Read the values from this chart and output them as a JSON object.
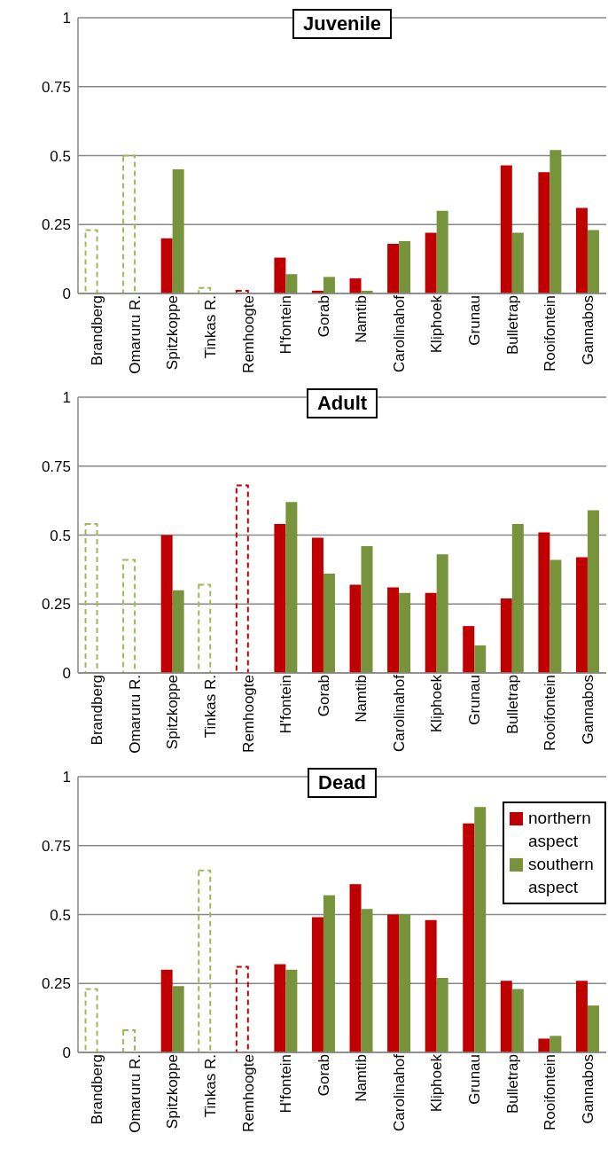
{
  "chart_data": [
    {
      "type": "bar",
      "title": "Juvenile",
      "categories": [
        "Brandberg",
        "Omaruru R.",
        "Spitzkoppe",
        "Tinkas R.",
        "Remhoogte",
        "H'fontein",
        "Gorab",
        "Namtib",
        "Carolinahof",
        "Kliphoek",
        "Grunau",
        "Bulletrap",
        "Rooifontein",
        "Gannabos"
      ],
      "series": [
        {
          "color": "#c00000",
          "values": [
            null,
            null,
            0.2,
            null,
            null,
            0.13,
            0.01,
            0.055,
            0.18,
            0.22,
            null,
            0.465,
            0.44,
            0.31
          ]
        },
        {
          "color": "#77933c",
          "values": [
            null,
            null,
            0.45,
            null,
            null,
            0.07,
            0.06,
            0.01,
            0.19,
            0.3,
            null,
            0.22,
            0.52,
            0.23
          ]
        },
        {
          "color": "#9bbb59",
          "line_style": "dashed",
          "values": [
            0.23,
            0.5,
            null,
            0.02,
            null,
            null,
            null,
            null,
            null,
            null,
            null,
            null,
            null,
            null
          ]
        },
        {
          "color": "#c00000",
          "line_style": "dashed",
          "values": [
            null,
            null,
            null,
            null,
            0.01,
            null,
            null,
            null,
            null,
            null,
            null,
            null,
            null,
            null
          ]
        }
      ],
      "ylim": [
        0,
        1
      ],
      "yticks": [
        0,
        0.25,
        0.5,
        0.75,
        1
      ],
      "grid": "y",
      "legend": false
    },
    {
      "type": "bar",
      "title": "Adult",
      "categories": [
        "Brandberg",
        "Omaruru R.",
        "Spitzkoppe",
        "Tinkas R.",
        "Remhoogte",
        "H'fontein",
        "Gorab",
        "Namtib",
        "Carolinahof",
        "Kliphoek",
        "Grunau",
        "Bulletrap",
        "Rooifontein",
        "Gannabos"
      ],
      "series": [
        {
          "color": "#c00000",
          "values": [
            null,
            null,
            0.5,
            null,
            null,
            0.54,
            0.49,
            0.32,
            0.31,
            0.29,
            0.17,
            0.27,
            0.51,
            0.42
          ]
        },
        {
          "color": "#77933c",
          "values": [
            null,
            null,
            0.3,
            null,
            null,
            0.62,
            0.36,
            0.46,
            0.29,
            0.43,
            0.1,
            0.54,
            0.41,
            0.59
          ]
        },
        {
          "color": "#9bbb59",
          "line_style": "dashed",
          "values": [
            0.54,
            0.41,
            null,
            0.32,
            null,
            null,
            null,
            null,
            null,
            null,
            null,
            null,
            null,
            null
          ]
        },
        {
          "color": "#c00000",
          "line_style": "dashed",
          "values": [
            null,
            null,
            null,
            null,
            0.68,
            null,
            null,
            null,
            null,
            null,
            null,
            null,
            null,
            null
          ]
        }
      ],
      "ylim": [
        0,
        1
      ],
      "yticks": [
        0,
        0.25,
        0.5,
        0.75,
        1
      ],
      "grid": "y",
      "legend": false
    },
    {
      "type": "bar",
      "title": "Dead",
      "categories": [
        "Brandberg",
        "Omaruru R.",
        "Spitzkoppe",
        "Tinkas R.",
        "Remhoogte",
        "H'fontein",
        "Gorab",
        "Namtib",
        "Carolinahof",
        "Kliphoek",
        "Grunau",
        "Bulletrap",
        "Rooifontein",
        "Gannabos"
      ],
      "series": [
        {
          "name": "northern aspect",
          "color": "#c00000",
          "values": [
            null,
            null,
            0.3,
            null,
            null,
            0.32,
            0.49,
            0.61,
            0.5,
            0.48,
            0.83,
            0.26,
            0.05,
            0.26
          ]
        },
        {
          "name": "southern aspect",
          "color": "#77933c",
          "values": [
            null,
            null,
            0.24,
            null,
            null,
            0.3,
            0.57,
            0.52,
            0.5,
            0.27,
            0.89,
            0.23,
            0.06,
            0.17
          ]
        },
        {
          "color": "#9bbb59",
          "line_style": "dashed",
          "values": [
            0.23,
            0.08,
            null,
            0.66,
            null,
            null,
            null,
            null,
            null,
            null,
            null,
            null,
            null,
            null
          ]
        },
        {
          "color": "#c00000",
          "line_style": "dashed",
          "values": [
            null,
            null,
            null,
            null,
            0.31,
            null,
            null,
            null,
            null,
            null,
            null,
            null,
            null,
            null
          ]
        }
      ],
      "ylim": [
        0,
        1
      ],
      "yticks": [
        0,
        0.25,
        0.5,
        0.75,
        1
      ],
      "grid": "y",
      "legend": "top right"
    }
  ]
}
